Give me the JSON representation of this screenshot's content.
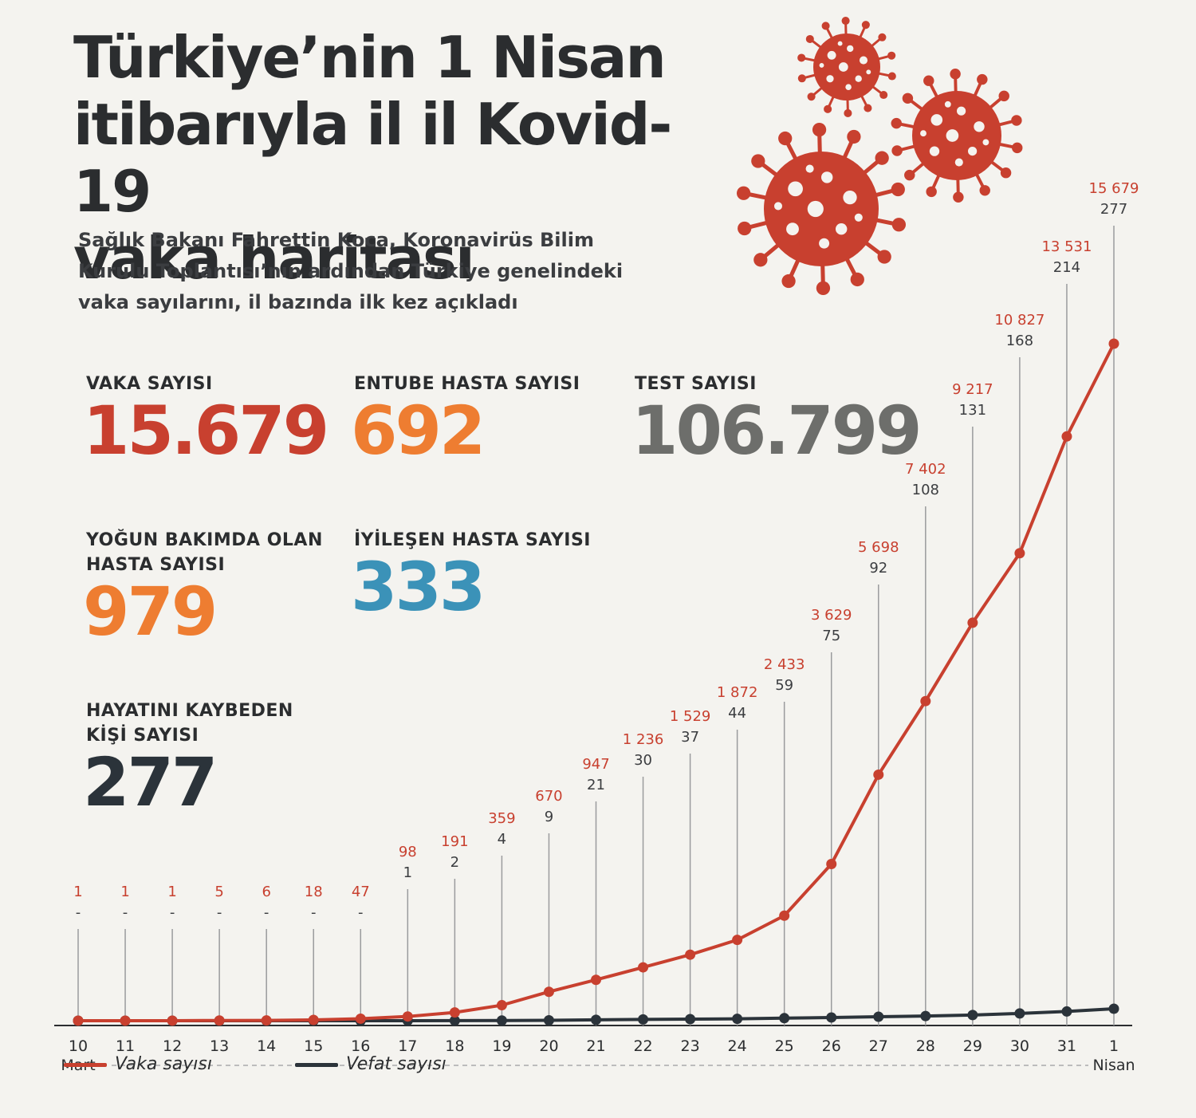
{
  "title_lines": [
    "Türkiye’nin 1 Nisan",
    "itibarıyla il il Kovid-19",
    "vaka haritası"
  ],
  "subtitle_lines": [
    "Sağlık Bakanı Fahrettin Koca, Koronavirüs Bilim",
    "Kurulu Toplantısı’nın ardından Türkiye genelindeki",
    "vaka sayılarını, il bazında ilk kez açıkladı"
  ],
  "stats": {
    "vaka": {
      "label": [
        "VAKA SAYISI"
      ],
      "value": "15.679",
      "color": "#c8402f"
    },
    "entube": {
      "label": [
        "ENTUBE HASTA SAYISI"
      ],
      "value": "692",
      "color": "#ee7d31"
    },
    "test": {
      "label": [
        "TEST SAYISI"
      ],
      "value": "106.799",
      "color": "#6d6e6b"
    },
    "yogun": {
      "label": [
        "YOĞUN BAKIMDA OLAN",
        "HASTA SAYISI"
      ],
      "value": "979",
      "color": "#ee7d31"
    },
    "iyilesen": {
      "label": [
        "İYİLEŞEN HASTA SAYISI"
      ],
      "value": "333",
      "color": "#3b92b8"
    },
    "vefat": {
      "label": [
        "HAYATINI KAYBEDEN",
        "KİŞİ SAYISI"
      ],
      "value": "277",
      "color": "#2b333a"
    }
  },
  "chart_data": {
    "type": "line",
    "categories": [
      "10",
      "11",
      "12",
      "13",
      "14",
      "15",
      "16",
      "17",
      "18",
      "19",
      "20",
      "21",
      "22",
      "23",
      "24",
      "25",
      "26",
      "27",
      "28",
      "29",
      "30",
      "31",
      "1"
    ],
    "series": [
      {
        "name": "Vaka sayısı",
        "color": "#c8402f",
        "values": [
          1,
          1,
          1,
          5,
          6,
          18,
          47,
          98,
          191,
          359,
          670,
          947,
          1236,
          1529,
          1872,
          2433,
          3629,
          5698,
          7402,
          9217,
          10827,
          13531,
          15679
        ],
        "labels": [
          "1",
          "1",
          "1",
          "5",
          "6",
          "18",
          "47",
          "98",
          "191",
          "359",
          "670",
          "947",
          "1 236",
          "1 529",
          "1 872",
          "2 433",
          "3 629",
          "5 698",
          "7 402",
          "9 217",
          "10 827",
          "13 531",
          "15 679"
        ]
      },
      {
        "name": "Vefat sayısı",
        "color": "#2b333a",
        "values": [
          0,
          0,
          0,
          0,
          0,
          0,
          0,
          1,
          2,
          4,
          9,
          21,
          30,
          37,
          44,
          59,
          75,
          92,
          108,
          131,
          168,
          214,
          277
        ],
        "labels": [
          "-",
          "-",
          "-",
          "-",
          "-",
          "-",
          "-",
          "1",
          "2",
          "4",
          "9",
          "21",
          "30",
          "37",
          "44",
          "59",
          "75",
          "92",
          "108",
          "131",
          "168",
          "214",
          "277"
        ]
      }
    ],
    "month_start": "Mart",
    "month_end": "Nisan",
    "ylim": [
      0,
      17500
    ],
    "legend": [
      {
        "label": "Vaka sayısı",
        "color": "#c8402f"
      },
      {
        "label": "Vefat sayısı",
        "color": "#2b333a"
      }
    ]
  }
}
